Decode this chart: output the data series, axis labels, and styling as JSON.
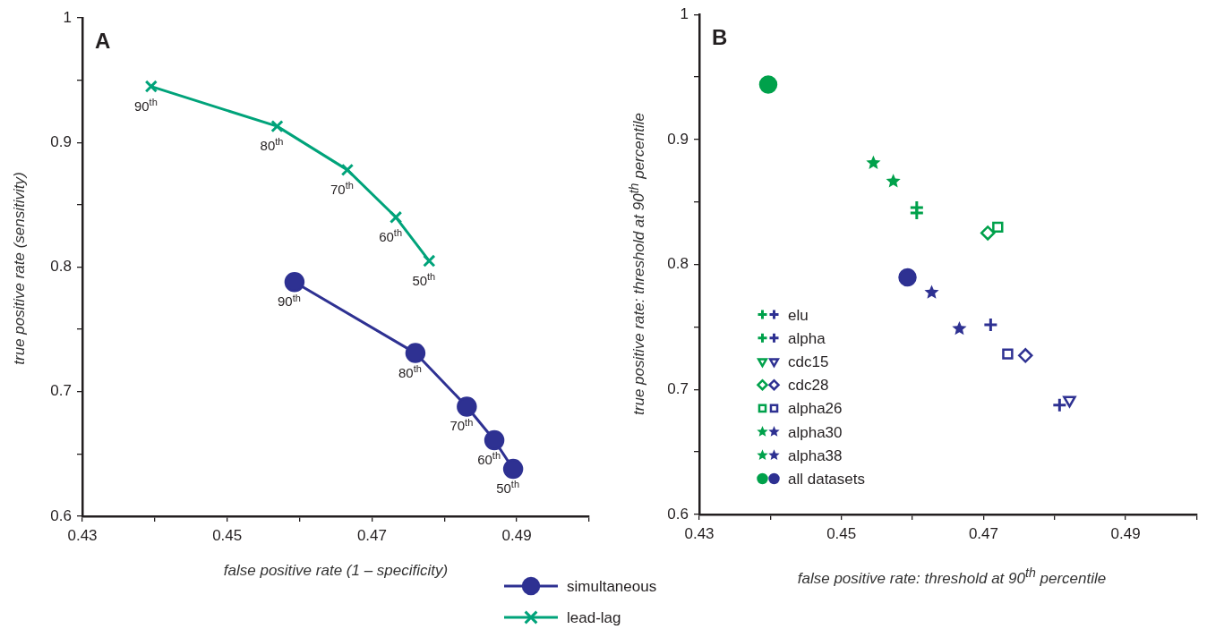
{
  "chart_data": [
    {
      "type": "line",
      "xlabel": "false positive rate (1 – specificity)",
      "ylabel": "true positive rate (sensitivity)",
      "xlim": [
        0.43,
        0.5
      ],
      "ylim": [
        0.6,
        1
      ],
      "xticks": [
        0.43,
        {
          "value": 0.44,
          "label": null
        },
        0.45,
        {
          "value": 0.46,
          "label": null
        },
        0.47,
        {
          "value": 0.48,
          "label": null
        },
        0.49,
        {
          "value": 0.5,
          "label": null
        }
      ],
      "yticks": [
        0.6,
        {
          "value": 0.65,
          "label": null
        },
        0.7,
        {
          "value": 0.75,
          "label": null
        },
        0.8,
        {
          "value": 0.85,
          "label": null
        },
        0.9,
        {
          "value": 0.95,
          "label": null
        },
        1
      ],
      "legend": "bottom right",
      "series": [
        {
          "name": "simultaneous",
          "color": "#2e3192",
          "marker": "circle",
          "x": [
            0.4593,
            0.476,
            0.4831,
            0.4869,
            0.4895
          ],
          "values": [
            0.788,
            0.731,
            0.688,
            0.661,
            0.638
          ]
        },
        {
          "name": "lead-lag",
          "color": "#00a37a",
          "marker": "cross",
          "x": [
            0.4395,
            0.4569,
            0.4666,
            0.4733,
            0.4779
          ],
          "values": [
            0.945,
            0.913,
            0.878,
            0.84,
            0.805
          ]
        }
      ],
      "annotations": [
        "A",
        {
          "text": "90$^{th}$",
          "x": 0.4593,
          "y": 0.788
        },
        {
          "text": "80$^{th}$",
          "x": 0.476,
          "y": 0.731
        },
        {
          "text": "70$^{th}$",
          "x": 0.4831,
          "y": 0.688
        },
        {
          "text": "60$^{th}$",
          "x": 0.4869,
          "y": 0.661
        },
        {
          "text": "50$^{th}$",
          "x": 0.4895,
          "y": 0.638
        },
        {
          "text": "90$^{th}$",
          "x": 0.4395,
          "y": 0.945
        },
        {
          "text": "80$^{th}$",
          "x": 0.4569,
          "y": 0.913
        },
        {
          "text": "70$^{th}$",
          "x": 0.4666,
          "y": 0.878
        },
        {
          "text": "60$^{th}$",
          "x": 0.4733,
          "y": 0.84
        },
        {
          "text": "50$^{th}$",
          "x": 0.4779,
          "y": 0.805
        }
      ]
    },
    {
      "type": "scatter",
      "xlabel": "false positive rate: threshold at 90$^{th}$ percentile",
      "ylabel": "true positive rate: threshold at 90$^{th}$ percentile",
      "xlim": [
        0.43,
        0.5
      ],
      "ylim": [
        0.6,
        1
      ],
      "xticks": [
        0.43,
        {
          "value": 0.44,
          "label": null
        },
        0.45,
        {
          "value": 0.46,
          "label": null
        },
        0.47,
        {
          "value": 0.48,
          "label": null
        },
        0.49,
        {
          "value": 0.5,
          "label": null
        }
      ],
      "yticks": [
        0.6,
        {
          "value": 0.65,
          "label": null
        },
        0.7,
        {
          "value": 0.75,
          "label": null
        },
        0.8,
        {
          "value": 0.85,
          "label": null
        },
        0.9,
        {
          "value": 0.95,
          "label": null
        },
        1
      ],
      "legend": "bottom left",
      "series": [
        {
          "name": "elu",
          "marker": "cross",
          "colors": [
            "#00a14b",
            "#2e3192"
          ],
          "x": [
            0.4606,
            0.4807
          ],
          "values": [
            0.8456,
            0.6875
          ]
        },
        {
          "name": "alpha",
          "marker": "cross",
          "colors": [
            "#00a14b",
            "#2e3192"
          ],
          "x": [
            0.4606,
            0.471
          ],
          "values": [
            0.8413,
            0.7517
          ]
        },
        {
          "name": "cdc15",
          "marker": "triangle",
          "colors": [
            "#00a14b",
            "#2e3192"
          ],
          "x": [
            null,
            0.4821
          ],
          "values": [
            null,
            0.6915
          ]
        },
        {
          "name": "cdc28",
          "marker": "diamond",
          "colors": [
            "#00a14b",
            "#2e3192"
          ],
          "x": [
            0.4706,
            0.4759
          ],
          "values": [
            0.8252,
            0.7272
          ]
        },
        {
          "name": "alpha26",
          "marker": "square",
          "colors": [
            "#00a14b",
            "#2e3192"
          ],
          "x": [
            0.472,
            0.4734
          ],
          "values": [
            0.8299,
            0.7284
          ]
        },
        {
          "name": "alpha30",
          "marker": "star",
          "colors": [
            "#00a14b",
            "#2e3192"
          ],
          "x": [
            0.4545,
            0.4627
          ],
          "values": [
            0.8812,
            0.7776
          ]
        },
        {
          "name": "alpha38",
          "marker": "star",
          "colors": [
            "#00a14b",
            "#2e3192"
          ],
          "x": [
            0.4573,
            0.4666
          ],
          "values": [
            0.8665,
            0.7486
          ]
        },
        {
          "name": "all datasets",
          "marker": "circle",
          "colors": [
            "#00a14b",
            "#2e3192"
          ],
          "x": [
            0.4397,
            0.4593
          ],
          "values": [
            0.944,
            0.7897
          ]
        }
      ],
      "annotations": [
        "B"
      ]
    }
  ]
}
